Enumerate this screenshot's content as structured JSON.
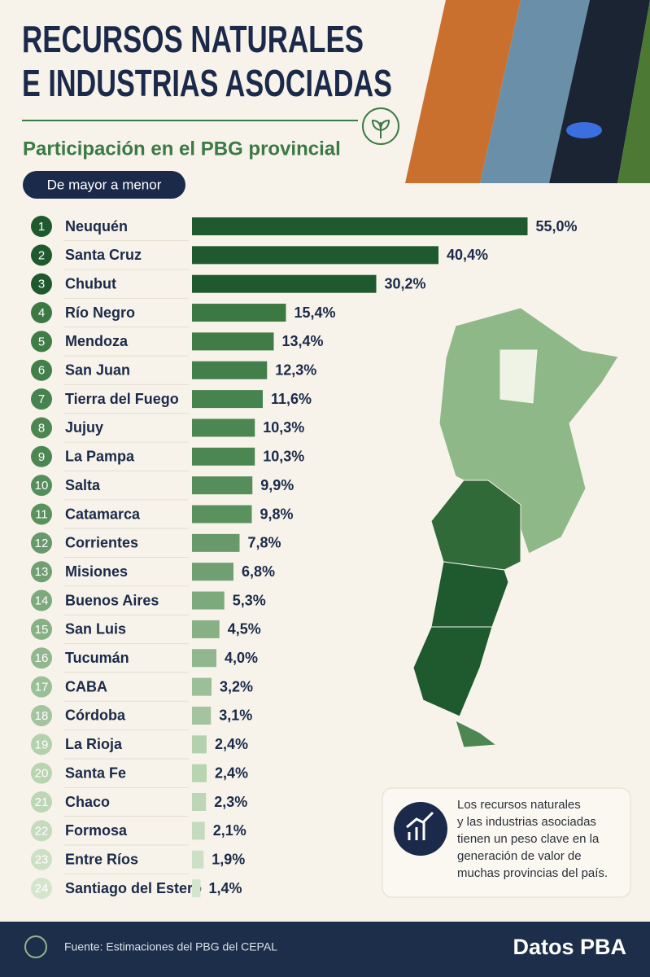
{
  "chart_data": {
    "type": "hbar",
    "title": [
      "RECURSOS NATURALES",
      "E INDUSTRIAS ASOCIADAS"
    ],
    "subtitle": "Participación en el PBG provincial",
    "order_label": "De mayor a menor",
    "ranks": [
      1,
      2,
      3,
      4,
      5,
      6,
      7,
      8,
      9,
      10,
      11,
      12,
      13,
      14,
      15,
      16,
      17,
      18,
      19,
      20,
      21,
      22,
      23,
      24
    ],
    "categories": [
      "Neuquén",
      "Santa Cruz",
      "Chubut",
      "Río Negro",
      "Mendoza",
      "San Juan",
      "Tierra del Fuego",
      "Jujuy",
      "La Pampa",
      "Salta",
      "Catamarca",
      "Corrientes",
      "Misiones",
      "Buenos Aires",
      "San Luis",
      "Tucumán",
      "CABA",
      "Córdoba",
      "La Rioja",
      "Santa Fe",
      "Chaco",
      "Formosa",
      "Entre Ríos",
      "Santiago del Estero"
    ],
    "values": [
      55.0,
      40.4,
      30.2,
      15.4,
      13.4,
      12.3,
      11.6,
      10.3,
      10.3,
      9.9,
      9.8,
      7.8,
      6.8,
      5.3,
      4.5,
      4.0,
      3.2,
      3.1,
      2.4,
      2.4,
      2.3,
      2.1,
      1.9,
      1.4
    ],
    "value_labels": [
      "55,0%",
      "40,4%",
      "30,2%",
      "15,4%",
      "13,4%",
      "12,3%",
      "11,6%",
      "10,3%",
      "10,3%",
      "9,9%",
      "9,8%",
      "7,8%",
      "6,8%",
      "5,3%",
      "4,5%",
      "4,0%",
      "3,2%",
      "3,1%",
      "2,4%",
      "2,4%",
      "2,3%",
      "2,1%",
      "1,9%",
      "1,4%"
    ],
    "colors": [
      "#1f5a2e",
      "#1f5a2e",
      "#1f5a2e",
      "#3b7842",
      "#3f7c46",
      "#437f4a",
      "#47834e",
      "#4c8752",
      "#4c8752",
      "#558e5a",
      "#5a925e",
      "#67996a",
      "#70a072",
      "#7daa7c",
      "#87b185",
      "#90b78d",
      "#9bbf97",
      "#a3c49e",
      "#b4d1ad",
      "#b8d4b1",
      "#bdd7b6",
      "#c4dbbd",
      "#cbe0c4",
      "#d3e5cd"
    ],
    "note": [
      "Los recursos naturales",
      "y las industrias asociadas",
      "tienen un peso clave en la",
      "generación de valor de",
      "muchas provincias del país."
    ],
    "source": "Fuente: Estimaciones del PBG del CEPAL",
    "brand": "Datos PBA"
  }
}
